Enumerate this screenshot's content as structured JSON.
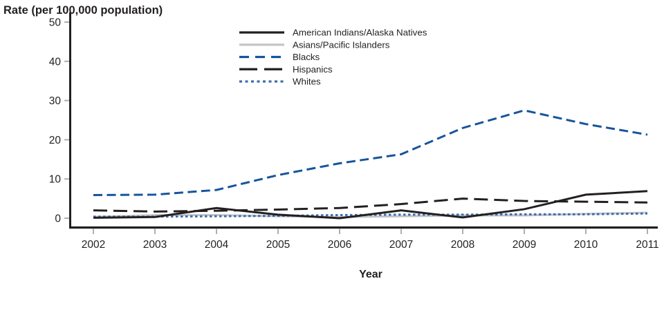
{
  "title": "Rate (per 100,000 population)",
  "xlabel": "Year",
  "chart_data": {
    "type": "line",
    "x": [
      2002,
      2003,
      2004,
      2005,
      2006,
      2007,
      2008,
      2009,
      2010,
      2011
    ],
    "yticks": [
      0,
      10,
      20,
      30,
      40,
      50
    ],
    "ylim": [
      0,
      50
    ],
    "grid": false,
    "legend_position": "top-center",
    "series": [
      {
        "name": "American Indians/Alaska Natives",
        "color": "#231f20",
        "style": "solid",
        "values": [
          0.1,
          0.3,
          2.6,
          0.9,
          0.0,
          2.0,
          0.2,
          2.3,
          6.0,
          6.9
        ]
      },
      {
        "name": "Asians/Pacific Islanders",
        "color": "#c4c5c7",
        "style": "solid",
        "values": [
          0.3,
          0.8,
          0.8,
          0.5,
          0.3,
          0.5,
          0.7,
          0.7,
          1.1,
          1.4
        ]
      },
      {
        "name": "Blacks",
        "color": "#16549c",
        "style": "dashed",
        "values": [
          5.9,
          6.0,
          7.2,
          11.0,
          14.0,
          16.3,
          23.0,
          27.5,
          24.0,
          21.3
        ]
      },
      {
        "name": "Hispanics",
        "color": "#231f20",
        "style": "long-dash",
        "values": [
          2.0,
          1.7,
          1.9,
          2.2,
          2.6,
          3.6,
          5.0,
          4.4,
          4.2,
          4.0
        ]
      },
      {
        "name": "Whites",
        "color": "#3d6daf",
        "style": "dotted",
        "values": [
          0.4,
          0.4,
          0.5,
          0.6,
          0.8,
          0.9,
          0.9,
          1.0,
          1.0,
          1.2
        ]
      }
    ]
  }
}
